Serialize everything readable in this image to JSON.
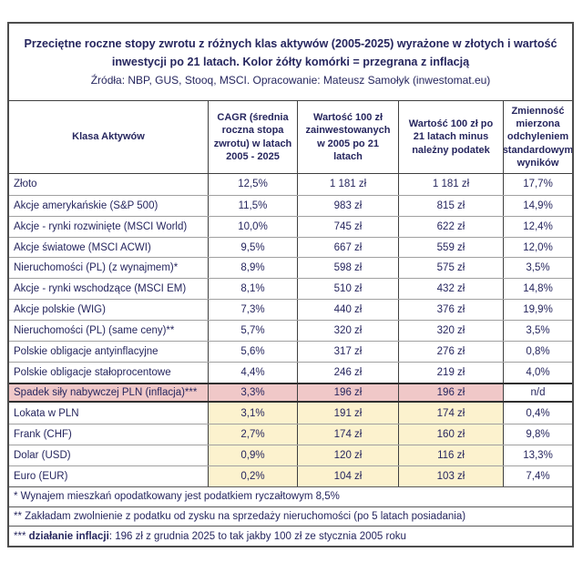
{
  "chart_data": {
    "type": "table",
    "title": "Przeciętne roczne stopy zwrotu z różnych klas aktywów (2005-2025) wyrażone w złotych i wartość inwestycji po 21 latach. Kolor żółty komórki = przegrana z inflacją",
    "source": "Źródła: NBP, GUS, Stooq, MSCI. Opracowanie: Mateusz Samołyk (inwestomat.eu)",
    "columns": [
      "Klasa Aktywów",
      "CAGR (średnia roczna stopa zwrotu) w latach 2005 - 2025",
      "Wartość 100 zł zainwestowanych w 2005 po 21 latach",
      "Wartość 100 zł po 21 latach minus należny podatek",
      "Zmienność mierzona odchyleniem standardowym wyników"
    ],
    "rows": [
      {
        "label": "Złoto",
        "cagr": "12,5%",
        "value_gross": "1 181 zł",
        "value_net": "1 181 zł",
        "volatility": "17,7%",
        "highlight": "none"
      },
      {
        "label": "Akcje amerykańskie (S&P 500)",
        "cagr": "11,5%",
        "value_gross": "983 zł",
        "value_net": "815 zł",
        "volatility": "14,9%",
        "highlight": "none"
      },
      {
        "label": "Akcje - rynki rozwinięte (MSCI World)",
        "cagr": "10,0%",
        "value_gross": "745 zł",
        "value_net": "622 zł",
        "volatility": "12,4%",
        "highlight": "none"
      },
      {
        "label": "Akcje światowe (MSCI ACWI)",
        "cagr": "9,5%",
        "value_gross": "667 zł",
        "value_net": "559 zł",
        "volatility": "12,0%",
        "highlight": "none"
      },
      {
        "label": "Nieruchomości (PL) (z wynajmem)*",
        "cagr": "8,9%",
        "value_gross": "598 zł",
        "value_net": "575 zł",
        "volatility": "3,5%",
        "highlight": "none"
      },
      {
        "label": "Akcje - rynki wschodzące (MSCI EM)",
        "cagr": "8,1%",
        "value_gross": "510 zł",
        "value_net": "432 zł",
        "volatility": "14,8%",
        "highlight": "none"
      },
      {
        "label": "Akcje polskie (WIG)",
        "cagr": "7,3%",
        "value_gross": "440 zł",
        "value_net": "376 zł",
        "volatility": "19,9%",
        "highlight": "none"
      },
      {
        "label": "Nieruchomości (PL) (same ceny)**",
        "cagr": "5,7%",
        "value_gross": "320 zł",
        "value_net": "320 zł",
        "volatility": "3,5%",
        "highlight": "none"
      },
      {
        "label": "Polskie obligacje antyinflacyjne",
        "cagr": "5,6%",
        "value_gross": "317 zł",
        "value_net": "276 zł",
        "volatility": "0,8%",
        "highlight": "none"
      },
      {
        "label": "Polskie obligacje stałoprocentowe",
        "cagr": "4,4%",
        "value_gross": "246 zł",
        "value_net": "219 zł",
        "volatility": "4,0%",
        "highlight": "none"
      },
      {
        "label": "Spadek siły nabywczej PLN (inflacja)***",
        "cagr": "3,3%",
        "value_gross": "196 zł",
        "value_net": "196 zł",
        "volatility": "n/d",
        "highlight": "inflation"
      },
      {
        "label": "Lokata w PLN",
        "cagr": "3,1%",
        "value_gross": "191 zł",
        "value_net": "174 zł",
        "volatility": "0,4%",
        "highlight": "yellow"
      },
      {
        "label": "Frank (CHF)",
        "cagr": "2,7%",
        "value_gross": "174 zł",
        "value_net": "160 zł",
        "volatility": "9,8%",
        "highlight": "yellow"
      },
      {
        "label": "Dolar (USD)",
        "cagr": "0,9%",
        "value_gross": "120 zł",
        "value_net": "116 zł",
        "volatility": "13,3%",
        "highlight": "yellow"
      },
      {
        "label": "Euro (EUR)",
        "cagr": "0,2%",
        "value_gross": "104 zł",
        "value_net": "103 zł",
        "volatility": "7,4%",
        "highlight": "yellow"
      }
    ],
    "footnotes": [
      {
        "before": "* Wynajem mieszkań opodatkowany jest podatkiem ryczałtowym 8,5%",
        "bold": "",
        "after": ""
      },
      {
        "before": "** Zakładam zwolnienie z podatku od zysku na sprzedaży nieruchomości (po 5 latach posiadania)",
        "bold": "",
        "after": ""
      },
      {
        "before": "*** ",
        "bold": "działanie inflacji",
        "after": ": 196 zł z grudnia 2025 to tak jakby 100 zł ze stycznia 2005 roku"
      }
    ],
    "colors": {
      "text_navy": "#26265e",
      "inflation_row_bg": "#f0c8c8",
      "losing_cell_bg": "#fcf2ce",
      "border_dark": "#3f3f3f",
      "border_light": "#a0a0a0"
    },
    "legend_note": "Kolor żółty komórki = przegrana z inflacją"
  }
}
